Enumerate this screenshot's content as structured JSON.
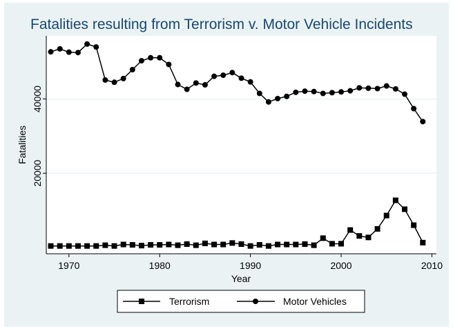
{
  "chart_data": {
    "type": "line",
    "title": "Fatalities resulting from Terrorism v. Motor Vehicle Incidents",
    "xlabel": "Year",
    "ylabel": "Fatalities",
    "xlim": [
      1967.5,
      2010.5
    ],
    "ylim": [
      -1700,
      57000
    ],
    "xticks": [
      1970,
      1980,
      1990,
      2000,
      2010
    ],
    "yticks": [
      20000,
      40000
    ],
    "x": [
      1968,
      1969,
      1970,
      1971,
      1972,
      1973,
      1974,
      1975,
      1976,
      1977,
      1978,
      1979,
      1980,
      1981,
      1982,
      1983,
      1984,
      1985,
      1986,
      1987,
      1988,
      1989,
      1990,
      1991,
      1992,
      1993,
      1994,
      1995,
      1996,
      1997,
      1998,
      1999,
      2000,
      2001,
      2002,
      2003,
      2004,
      2005,
      2006,
      2007,
      2008,
      2009
    ],
    "series": [
      {
        "name": "Terrorism",
        "marker": "square",
        "values": [
          400,
          400,
          400,
          400,
          400,
          400,
          600,
          400,
          800,
          700,
          500,
          700,
          700,
          800,
          600,
          900,
          600,
          1100,
          800,
          800,
          1200,
          900,
          400,
          700,
          400,
          800,
          800,
          800,
          900,
          600,
          2500,
          1000,
          1000,
          4700,
          3100,
          2700,
          5000,
          8600,
          12700,
          10300,
          6000,
          1300
        ]
      },
      {
        "name": "Motor Vehicles",
        "marker": "circle",
        "values": [
          52700,
          53500,
          52600,
          52500,
          54800,
          54000,
          45100,
          44500,
          45500,
          47900,
          50300,
          51100,
          51100,
          49300,
          43900,
          42600,
          44300,
          43800,
          46100,
          46400,
          47100,
          45600,
          44600,
          41500,
          39200,
          40100,
          40700,
          41800,
          42100,
          42000,
          41500,
          41700,
          41900,
          42200,
          43000,
          42900,
          42800,
          43500,
          42700,
          41300,
          37400,
          33900
        ]
      }
    ],
    "legend_position": "bottom",
    "grid": true
  },
  "colors": {
    "background": "#eaf2f3",
    "plot_background": "#ffffff",
    "title": "#1a476f",
    "line": "#000000",
    "grid": "#eaf2f3"
  }
}
